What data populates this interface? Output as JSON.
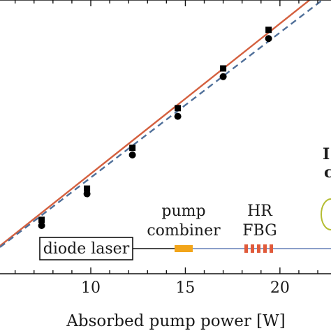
{
  "chart_data": {
    "type": "scatter",
    "xlabel": "Absorbed pump power [W]",
    "xlim": [
      5.2,
      22.7
    ],
    "ylim": [
      0,
      1
    ],
    "xticks": [
      10,
      15,
      20
    ],
    "grid": false,
    "series": [
      {
        "marker": "square",
        "color": "#000000",
        "points": [
          [
            7.4,
            0.197
          ],
          [
            9.8,
            0.311
          ],
          [
            12.2,
            0.46
          ],
          [
            14.6,
            0.605
          ],
          [
            17.0,
            0.75
          ],
          [
            19.4,
            0.891
          ]
        ]
      },
      {
        "marker": "circle",
        "color": "#000000",
        "points": [
          [
            7.4,
            0.176
          ],
          [
            9.8,
            0.292
          ],
          [
            12.2,
            0.434
          ],
          [
            14.6,
            0.575
          ],
          [
            17.0,
            0.72
          ],
          [
            19.4,
            0.859
          ]
        ]
      }
    ],
    "fits": [
      {
        "style": "solid",
        "color": "#d4603f",
        "from": [
          5.2,
          0.102
        ],
        "to": [
          22.7,
          1.062
        ]
      },
      {
        "style": "dashed",
        "color": "#4f6f99",
        "from": [
          5.2,
          0.097
        ],
        "to": [
          22.7,
          1.024
        ]
      }
    ],
    "inset": {
      "diode_label": "diode laser",
      "combiner_label": [
        "pump",
        "combiner"
      ],
      "fbg_label": [
        "HR",
        "FBG"
      ],
      "combiner_color": "#f2a51a",
      "fbg_color": "#e05a3a",
      "fiber_color": "#8b9fc9",
      "lead_color": "#111111",
      "coupler_color": "#b5bd33",
      "cut_text": "I",
      "cut_text2": "c"
    }
  }
}
